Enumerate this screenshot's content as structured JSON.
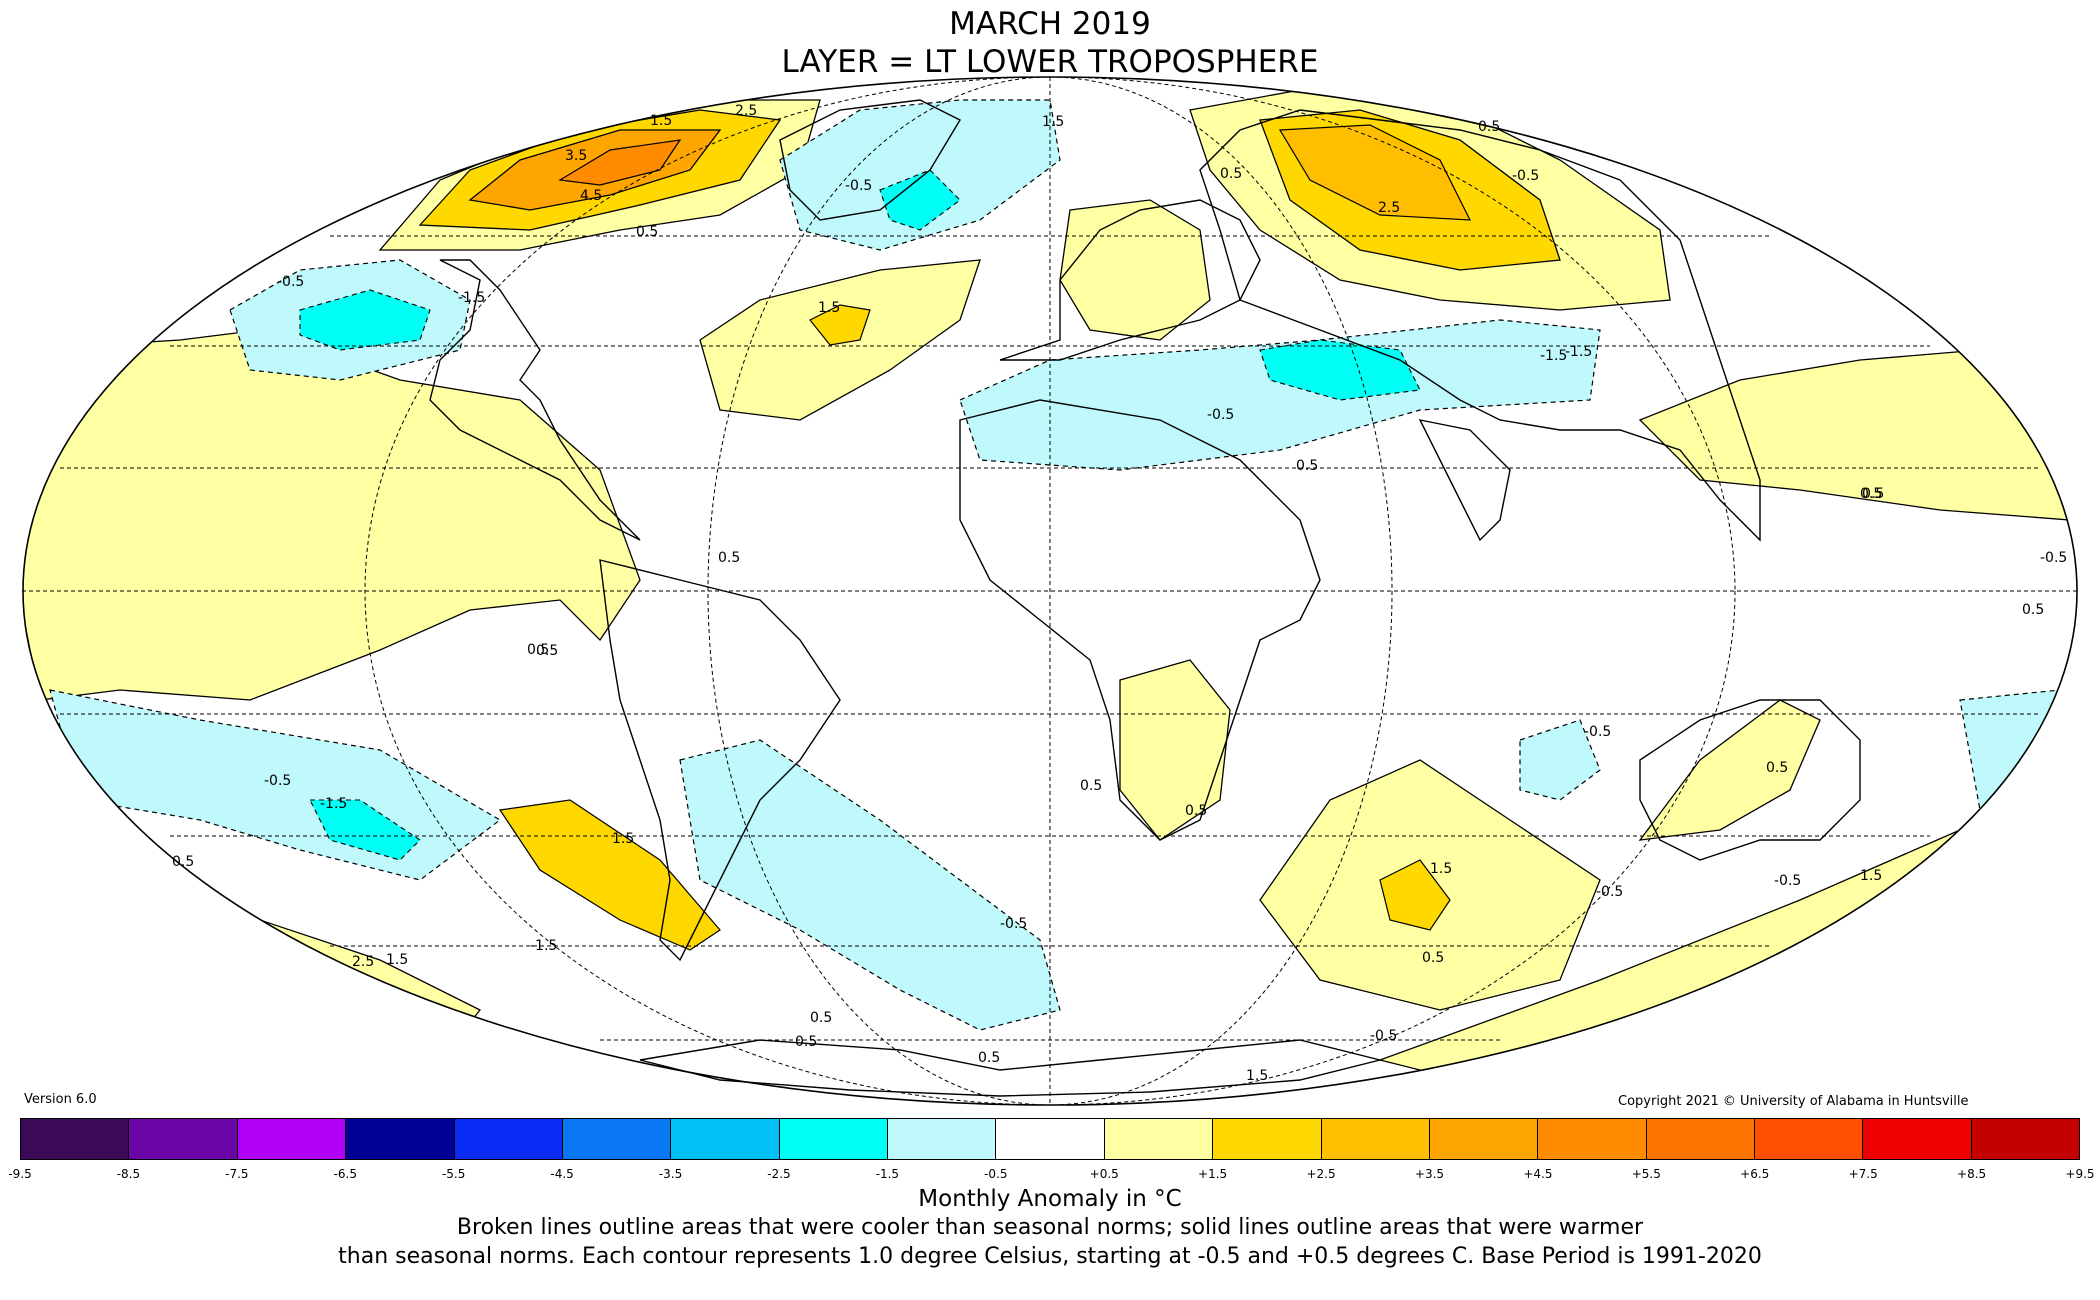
{
  "title": {
    "line1": "MARCH 2019",
    "line2": "LAYER = LT LOWER TROPOSPHERE"
  },
  "version": "Version 6.0",
  "copyright": "Copyright 2021 © University of Alabama in Huntsville",
  "legend": {
    "units": "Monthly Anomaly in °C",
    "ticks": [
      "-9.5",
      "-8.5",
      "-7.5",
      "-6.5",
      "-5.5",
      "-4.5",
      "-3.5",
      "-2.5",
      "-1.5",
      "-0.5",
      "+0.5",
      "+1.5",
      "+2.5",
      "+3.5",
      "+4.5",
      "+5.5",
      "+6.5",
      "+7.5",
      "+8.5",
      "+9.5"
    ],
    "colors": [
      "#3b0a57",
      "#6a05a8",
      "#b200f5",
      "#000095",
      "#0a2af5",
      "#0a78f5",
      "#00c0f5",
      "#00fff5",
      "#bff9fc",
      "#ffffff",
      "#ffffa3",
      "#ffd800",
      "#ffbf00",
      "#ffa500",
      "#ff8c00",
      "#ff7300",
      "#ff4f00",
      "#ef0000",
      "#c40000"
    ]
  },
  "note": {
    "line1": "Broken lines outline areas that were cooler than seasonal norms; solid lines outline areas that were warmer",
    "line2": "than seasonal norms. Each contour represents 1.0 degree Celsius, starting at -0.5 and +0.5 degrees C. Base Period is 1991-2020"
  },
  "contour_labels": [
    "1.5",
    "2.5",
    "3.5",
    "4.5",
    "0.5",
    "-0.5",
    "-1.5",
    "1.5",
    "0.5",
    "-0.5",
    "2.5",
    "1.5",
    "-0.5",
    "0.5",
    "-1.5",
    "0.5",
    "-0.5",
    "0.5",
    "-1.5",
    "-0.5",
    "1.5",
    "0.5",
    "2.5",
    "1.5",
    "-0.5",
    "0.5",
    "-1.5",
    "-0.5",
    "0.5",
    "0.5",
    "-0.5",
    "-0.5",
    "1.5",
    "0.5",
    "-0.5",
    "0.5",
    "1.5",
    "0.5",
    "0.5",
    "0.5",
    "0.5",
    "0.5",
    "-0.5",
    "0.5",
    "-1.5",
    "0.5",
    "1.5"
  ]
}
